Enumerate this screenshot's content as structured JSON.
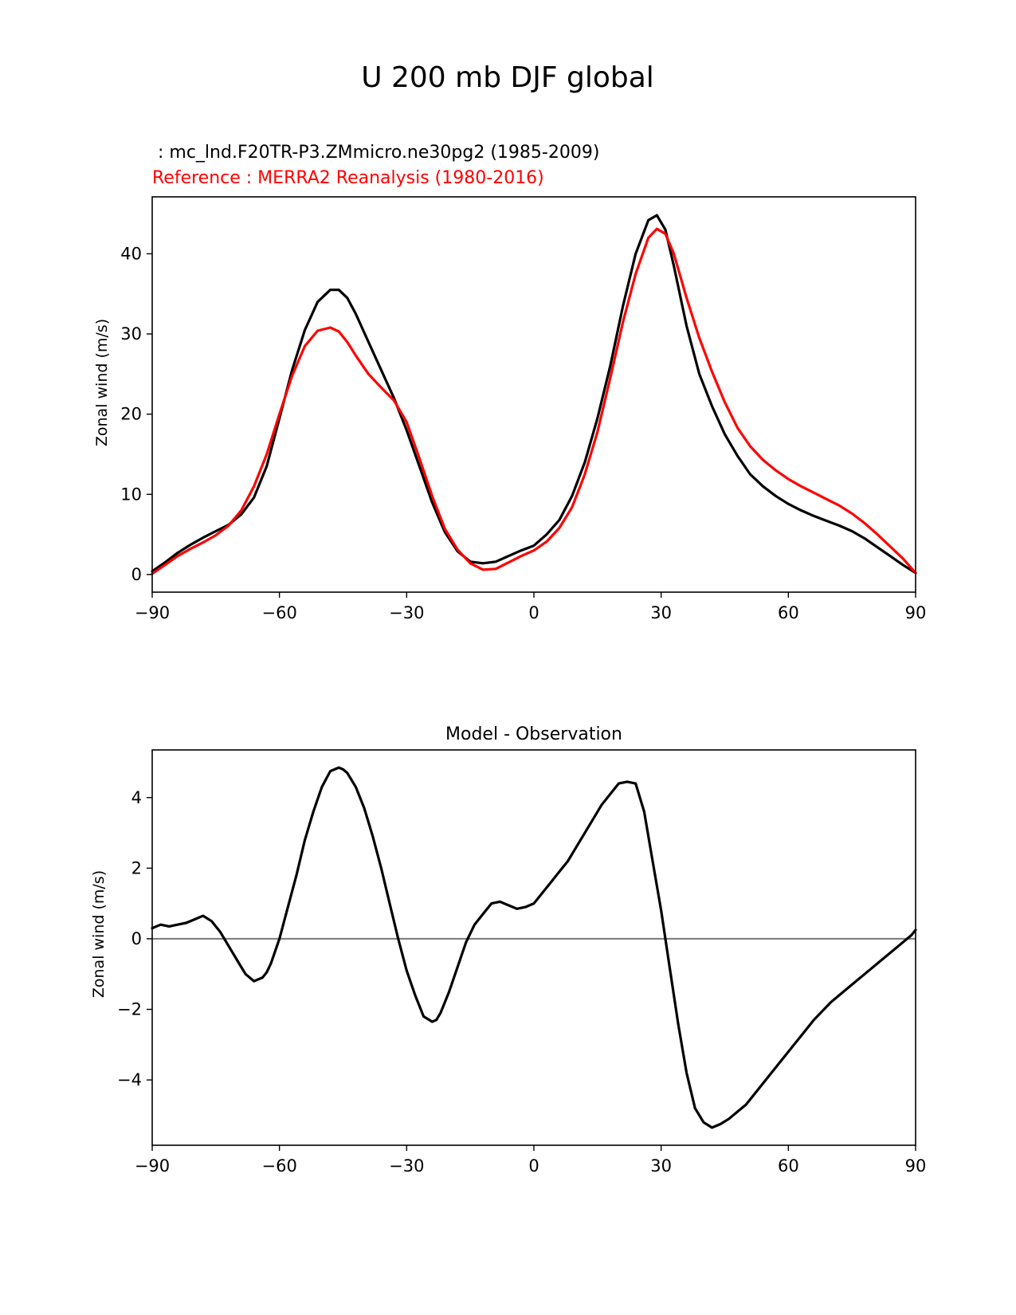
{
  "figure": {
    "title": "U 200 mb DJF global"
  },
  "chart_data": [
    {
      "type": "line",
      "title_main": " : mc_lnd.F20TR-P3.ZMmicro.ne30pg2 (1985-2009)",
      "title_ref": "Reference : MERRA2 Reanalysis (1980-2016)",
      "title_ref_color": "#ff0000",
      "xlabel": "",
      "ylabel": "Zonal wind (m/s)",
      "xlim": [
        -90,
        90
      ],
      "ylim": [
        -2.2,
        47.1
      ],
      "xticks": [
        -90,
        -60,
        -30,
        0,
        30,
        60,
        90
      ],
      "xtick_labels": [
        "−90",
        "−60",
        "−30",
        "0",
        "30",
        "60",
        "90"
      ],
      "yticks": [
        0,
        10,
        20,
        30,
        40
      ],
      "ytick_labels": [
        "0",
        "10",
        "20",
        "30",
        "40"
      ],
      "series": [
        {
          "name": "model",
          "color": "#000000",
          "x": [
            -90,
            -87,
            -84,
            -81,
            -78,
            -75,
            -72,
            -69,
            -66,
            -63,
            -60,
            -57,
            -54,
            -51,
            -48,
            -46,
            -44,
            -42,
            -39,
            -36,
            -33,
            -30,
            -27,
            -24,
            -21,
            -18,
            -15,
            -12,
            -9,
            -6,
            -3,
            0,
            3,
            6,
            9,
            12,
            15,
            18,
            21,
            24,
            27,
            29,
            31,
            33,
            36,
            39,
            42,
            45,
            48,
            51,
            54,
            57,
            60,
            63,
            66,
            69,
            72,
            75,
            78,
            81,
            84,
            87,
            90
          ],
          "values": [
            0.4,
            1.5,
            2.7,
            3.7,
            4.6,
            5.4,
            6.2,
            7.5,
            9.6,
            13.5,
            19.5,
            25.5,
            30.5,
            34,
            35.5,
            35.5,
            34.5,
            32.5,
            29,
            25.5,
            22,
            18,
            13.5,
            9,
            5.3,
            2.9,
            1.6,
            1.4,
            1.6,
            2.3,
            3.0,
            3.6,
            5.0,
            6.8,
            9.8,
            14,
            19.5,
            26,
            33.5,
            40,
            44.2,
            44.8,
            43,
            38.5,
            31,
            25,
            21,
            17.5,
            14.8,
            12.5,
            11,
            9.8,
            8.8,
            8,
            7.3,
            6.7,
            6.1,
            5.4,
            4.5,
            3.4,
            2.3,
            1.2,
            0.2
          ]
        },
        {
          "name": "reference",
          "color": "#ff0000",
          "x": [
            -90,
            -87,
            -84,
            -81,
            -78,
            -75,
            -72,
            -69,
            -66,
            -63,
            -60,
            -57,
            -54,
            -51,
            -48,
            -46,
            -44,
            -42,
            -39,
            -36,
            -33,
            -30,
            -27,
            -24,
            -21,
            -18,
            -15,
            -12,
            -9,
            -6,
            -3,
            0,
            3,
            6,
            9,
            12,
            15,
            18,
            21,
            24,
            27,
            29,
            31,
            33,
            36,
            39,
            42,
            45,
            48,
            51,
            54,
            57,
            60,
            63,
            66,
            69,
            72,
            75,
            78,
            81,
            84,
            87,
            90
          ],
          "values": [
            0.1,
            1.2,
            2.3,
            3.2,
            4.0,
            4.9,
            6.1,
            8.0,
            11,
            15,
            20,
            24.8,
            28.5,
            30.4,
            30.8,
            30.3,
            29,
            27.3,
            25,
            23.3,
            21.7,
            19,
            14.5,
            9.8,
            5.7,
            3.1,
            1.4,
            0.6,
            0.7,
            1.5,
            2.3,
            3.0,
            4.1,
            5.8,
            8.4,
            12.5,
            17.8,
            24.5,
            31.5,
            37.5,
            42,
            43.1,
            42.5,
            40,
            34.5,
            29.5,
            25.3,
            21.5,
            18.3,
            16,
            14.3,
            13,
            11.9,
            11,
            10.2,
            9.4,
            8.6,
            7.6,
            6.4,
            5.0,
            3.5,
            2.0,
            0.2
          ]
        }
      ]
    },
    {
      "type": "line",
      "title": "Model - Observation",
      "xlabel": "",
      "ylabel": "Zonal wind (m/s)",
      "xlim": [
        -90,
        90
      ],
      "ylim": [
        -5.85,
        5.35
      ],
      "xticks": [
        -90,
        -60,
        -30,
        0,
        30,
        60,
        90
      ],
      "xtick_labels": [
        "−90",
        "−60",
        "−30",
        "0",
        "30",
        "60",
        "90"
      ],
      "yticks": [
        -4,
        -2,
        0,
        2,
        4
      ],
      "ytick_labels": [
        "−4",
        "−2",
        "0",
        "2",
        "4"
      ],
      "zero_line_color": "#808080",
      "series": [
        {
          "name": "difference",
          "color": "#000000",
          "x": [
            -90,
            -88,
            -86,
            -84,
            -82,
            -80,
            -78,
            -76,
            -74,
            -72,
            -70,
            -68,
            -66,
            -64,
            -63,
            -62,
            -60,
            -58,
            -56,
            -54,
            -52,
            -50,
            -48,
            -46,
            -45,
            -44,
            -42,
            -40,
            -38,
            -36,
            -34,
            -32,
            -30,
            -28,
            -26,
            -24,
            -23,
            -22,
            -20,
            -18,
            -16,
            -14,
            -12,
            -10,
            -8,
            -6,
            -4,
            -2,
            0,
            2,
            4,
            6,
            8,
            10,
            12,
            14,
            16,
            18,
            20,
            22,
            24,
            26,
            28,
            30,
            32,
            34,
            36,
            38,
            40,
            42,
            44,
            46,
            48,
            50,
            54,
            58,
            62,
            66,
            70,
            74,
            78,
            82,
            86,
            88,
            89,
            90
          ],
          "values": [
            0.3,
            0.4,
            0.35,
            0.4,
            0.45,
            0.55,
            0.65,
            0.5,
            0.2,
            -0.2,
            -0.6,
            -1.0,
            -1.2,
            -1.1,
            -0.95,
            -0.7,
            0.0,
            0.9,
            1.8,
            2.8,
            3.6,
            4.3,
            4.75,
            4.85,
            4.8,
            4.7,
            4.3,
            3.7,
            2.9,
            2.0,
            1.0,
            0.0,
            -0.9,
            -1.6,
            -2.2,
            -2.35,
            -2.3,
            -2.1,
            -1.5,
            -0.8,
            -0.1,
            0.4,
            0.7,
            1.0,
            1.05,
            0.95,
            0.85,
            0.9,
            1.0,
            1.3,
            1.6,
            1.9,
            2.2,
            2.6,
            3.0,
            3.4,
            3.8,
            4.1,
            4.4,
            4.45,
            4.4,
            3.6,
            2.2,
            0.8,
            -0.8,
            -2.4,
            -3.8,
            -4.8,
            -5.2,
            -5.35,
            -5.25,
            -5.1,
            -4.9,
            -4.7,
            -4.1,
            -3.5,
            -2.9,
            -2.3,
            -1.8,
            -1.4,
            -1.0,
            -0.6,
            -0.2,
            0.0,
            0.1,
            0.25
          ]
        }
      ]
    }
  ]
}
